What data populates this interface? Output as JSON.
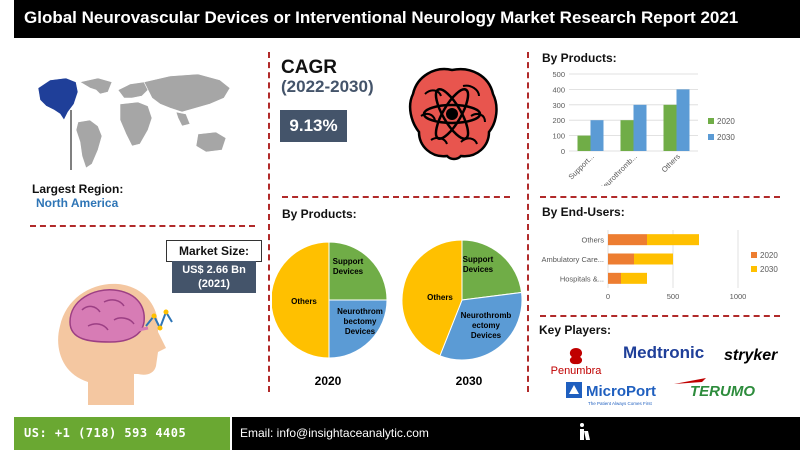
{
  "title": "Global Neurovascular Devices or Interventional Neurology Market Research Report 2021",
  "region": {
    "label": "Largest Region:",
    "value": "North America"
  },
  "market_size": {
    "label": "Market Size:",
    "value_line1": "US$ 2.66 Bn",
    "value_line2": "(2021)"
  },
  "cagr": {
    "label": "CAGR",
    "period": "(2022-2030)",
    "value": "9.13%"
  },
  "pies": {
    "title": "By Products:",
    "captions": [
      "2020",
      "2030"
    ],
    "labels": {
      "support": "Support Devices",
      "neuro": "Neurothrombectomy Devices",
      "others": "Others"
    }
  },
  "bars_products": {
    "title": "By Products:"
  },
  "bars_endusers": {
    "title": "By End-Users:"
  },
  "players": {
    "title": "Key Players:",
    "names": [
      "Penumbra",
      "Medtronic",
      "stryker",
      "MicroPort",
      "TERUMO"
    ],
    "microport_tagline": "The Patient Always Comes First"
  },
  "footer": {
    "phone": "US: +1 (718) 593 4405",
    "email": "Email: info@insightaceanalytic.com"
  },
  "colors": {
    "green": "#70ad47",
    "blue": "#5b9bd5",
    "orange": "#ed7d31",
    "yellow": "#ffc000",
    "slate": "#44546a",
    "accent": "#b12a2a"
  },
  "chart_data": [
    {
      "type": "bar",
      "title": "By Products:",
      "categories": [
        "Support...",
        "Neurothromb...",
        "Others"
      ],
      "series": [
        {
          "name": "2020",
          "values": [
            100,
            200,
            300
          ]
        },
        {
          "name": "2030",
          "values": [
            200,
            300,
            400
          ]
        }
      ],
      "ylim": [
        0,
        500
      ],
      "yticks": [
        0,
        100,
        200,
        300,
        400,
        500
      ],
      "legend": "right",
      "grid": true
    },
    {
      "type": "bar",
      "orientation": "horizontal",
      "title": "By End-Users:",
      "categories": [
        "Others",
        "Ambulatory Care...",
        "Hospitals &..."
      ],
      "series": [
        {
          "name": "2020",
          "values": [
            300,
            200,
            100
          ]
        },
        {
          "name": "2030",
          "values": [
            400,
            300,
            200
          ]
        }
      ],
      "stacked": true,
      "xlim": [
        0,
        1000
      ],
      "xticks": [
        0,
        500,
        1000
      ],
      "legend": "right",
      "grid": true
    },
    {
      "type": "pie",
      "title": "2020",
      "labels": [
        "Support Devices",
        "Neurothrombectomy Devices",
        "Others"
      ],
      "values": [
        25,
        25,
        50
      ]
    },
    {
      "type": "pie",
      "title": "2030",
      "labels": [
        "Support Devices",
        "Neurothrombectomy Devices",
        "Others"
      ],
      "values": [
        23,
        33,
        44
      ]
    }
  ]
}
